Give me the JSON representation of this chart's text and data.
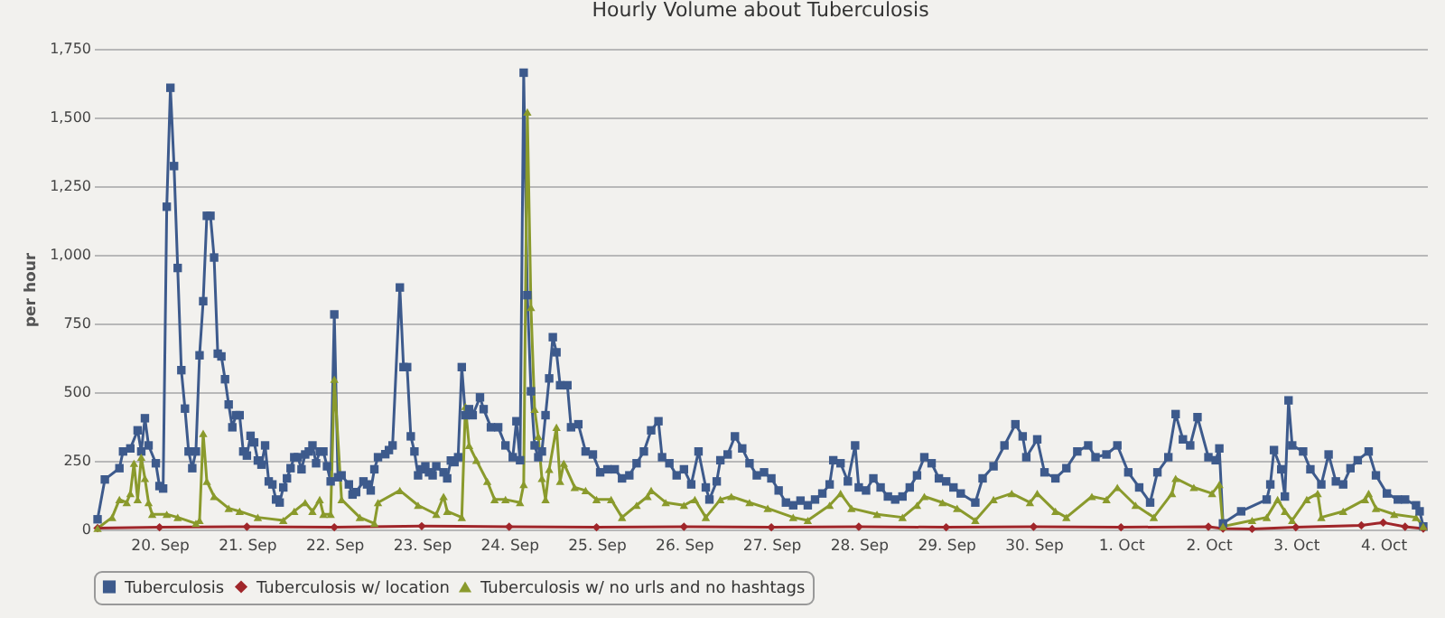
{
  "chart_data": {
    "type": "line",
    "title": "Hourly Volume about Tuberculosis",
    "ylabel": "per hour",
    "xlim": [
      "--09-19T06:00",
      "--10-04T12:00"
    ],
    "ylim": [
      0,
      1750
    ],
    "xticks": [
      {
        "value": "--09-20",
        "label": "20. Sep"
      },
      {
        "value": "--09-21",
        "label": "21. Sep"
      },
      {
        "value": "--09-22",
        "label": "22. Sep"
      },
      {
        "value": "--09-23",
        "label": "23. Sep"
      },
      {
        "value": "--09-24",
        "label": "24. Sep"
      },
      {
        "value": "--09-25",
        "label": "25. Sep"
      },
      {
        "value": "--09-26",
        "label": "26. Sep"
      },
      {
        "value": "--09-27",
        "label": "27. Sep"
      },
      {
        "value": "--09-28",
        "label": "28. Sep"
      },
      {
        "value": "--09-29",
        "label": "29. Sep"
      },
      {
        "value": "--09-30",
        "label": "30. Sep"
      },
      {
        "value": "--10-01",
        "label": "1. Oct"
      },
      {
        "value": "--10-02",
        "label": "2. Oct"
      },
      {
        "value": "--10-03",
        "label": "3. Oct"
      },
      {
        "value": "--10-04",
        "label": "4. Oct"
      }
    ],
    "yticks": [
      0,
      250,
      500,
      750,
      {
        "value": 1000,
        "label": "1,000"
      },
      {
        "value": 1250,
        "label": "1,250"
      },
      {
        "value": 1500,
        "label": "1,500"
      },
      {
        "value": 1750,
        "label": "1,750"
      }
    ],
    "grid": "y",
    "legend": "bottom",
    "series": [
      {
        "name": "Tuberculosis",
        "color": "#3d5a8c",
        "marker": "square",
        "x": [
          "--09-19T07:00",
          "--09-19T09:00",
          "--09-19T13:00",
          "--09-19T14:00",
          "--09-19T16:00",
          "--09-19T18:00",
          "--09-19T19:00",
          "--09-19T20:00",
          "--09-19T21:00",
          "--09-19T23:00",
          "--09-20T00:00",
          "--09-20T01:00",
          "--09-20T02:00",
          "--09-20T03:00",
          "--09-20T04:00",
          "--09-20T05:00",
          "--09-20T06:00",
          "--09-20T07:00",
          "--09-20T08:00",
          "--09-20T09:00",
          "--09-20T10:00",
          "--09-20T11:00",
          "--09-20T12:00",
          "--09-20T13:00",
          "--09-20T14:00",
          "--09-20T15:00",
          "--09-20T16:00",
          "--09-20T17:00",
          "--09-20T18:00",
          "--09-20T19:00",
          "--09-20T20:00",
          "--09-20T21:00",
          "--09-20T22:00",
          "--09-20T23:00",
          "--09-21T00:00",
          "--09-21T01:00",
          "--09-21T02:00",
          "--09-21T03:00",
          "--09-21T04:00",
          "--09-21T05:00",
          "--09-21T06:00",
          "--09-21T07:00",
          "--09-21T08:00",
          "--09-21T09:00",
          "--09-21T10:00",
          "--09-21T11:00",
          "--09-21T12:00",
          "--09-21T13:00",
          "--09-21T14:00",
          "--09-21T15:00",
          "--09-21T16:00",
          "--09-21T17:00",
          "--09-21T18:00",
          "--09-21T19:00",
          "--09-21T20:00",
          "--09-21T21:00",
          "--09-21T22:00",
          "--09-21T23:00",
          "--09-22T00:00",
          "--09-22T01:00",
          "--09-22T02:00",
          "--09-22T04:00",
          "--09-22T05:00",
          "--09-22T06:00",
          "--09-22T08:00",
          "--09-22T09:00",
          "--09-22T10:00",
          "--09-22T11:00",
          "--09-22T12:00",
          "--09-22T14:00",
          "--09-22T15:00",
          "--09-22T16:00",
          "--09-22T18:00",
          "--09-22T19:00",
          "--09-22T20:00",
          "--09-22T21:00",
          "--09-22T22:00",
          "--09-22T23:00",
          "--09-23T00:00",
          "--09-23T01:00",
          "--09-23T02:00",
          "--09-23T03:00",
          "--09-23T04:00",
          "--09-23T06:00",
          "--09-23T07:00",
          "--09-23T08:00",
          "--09-23T09:00",
          "--09-23T10:00",
          "--09-23T11:00",
          "--09-23T12:00",
          "--09-23T13:00",
          "--09-23T14:00",
          "--09-23T16:00",
          "--09-23T17:00",
          "--09-23T19:00",
          "--09-23T21:00",
          "--09-23T23:00",
          "--09-24T01:00",
          "--09-24T02:00",
          "--09-24T03:00",
          "--09-24T04:00",
          "--09-24T05:00",
          "--09-24T06:00",
          "--09-24T07:00",
          "--09-24T08:00",
          "--09-24T09:00",
          "--09-24T10:00",
          "--09-24T11:00",
          "--09-24T12:00",
          "--09-24T13:00",
          "--09-24T14:00",
          "--09-24T16:00",
          "--09-24T17:00",
          "--09-24T19:00",
          "--09-24T21:00",
          "--09-24T23:00",
          "--09-25T01:00",
          "--09-25T03:00",
          "--09-25T05:00",
          "--09-25T07:00",
          "--09-25T09:00",
          "--09-25T11:00",
          "--09-25T13:00",
          "--09-25T15:00",
          "--09-25T17:00",
          "--09-25T18:00",
          "--09-25T20:00",
          "--09-25T22:00",
          "--09-26T00:00",
          "--09-26T02:00",
          "--09-26T04:00",
          "--09-26T06:00",
          "--09-26T07:00",
          "--09-26T09:00",
          "--09-26T10:00",
          "--09-26T12:00",
          "--09-26T14:00",
          "--09-26T16:00",
          "--09-26T18:00",
          "--09-26T20:00",
          "--09-26T22:00",
          "--09-27T00:00",
          "--09-27T02:00",
          "--09-27T04:00",
          "--09-27T06:00",
          "--09-27T08:00",
          "--09-27T10:00",
          "--09-27T12:00",
          "--09-27T14:00",
          "--09-27T16:00",
          "--09-27T17:00",
          "--09-27T19:00",
          "--09-27T21:00",
          "--09-27T23:00",
          "--09-28T00:00",
          "--09-28T02:00",
          "--09-28T04:00",
          "--09-28T06:00",
          "--09-28T08:00",
          "--09-28T10:00",
          "--09-28T12:00",
          "--09-28T14:00",
          "--09-28T16:00",
          "--09-28T18:00",
          "--09-28T20:00",
          "--09-28T22:00",
          "--09-29T00:00",
          "--09-29T02:00",
          "--09-29T04:00",
          "--09-29T08:00",
          "--09-29T10:00",
          "--09-29T13:00",
          "--09-29T16:00",
          "--09-29T19:00",
          "--09-29T21:00",
          "--09-29T22:00",
          "--09-30T01:00",
          "--09-30T03:00",
          "--09-30T06:00",
          "--09-30T09:00",
          "--09-30T12:00",
          "--09-30T15:00",
          "--09-30T17:00",
          "--09-30T20:00",
          "--09-30T23:00",
          "--10-01T02:00",
          "--10-01T05:00",
          "--10-01T08:00",
          "--10-01T10:00",
          "--10-01T13:00",
          "--10-01T15:00",
          "--10-01T17:00",
          "--10-01T19:00",
          "--10-01T21:00",
          "--10-02T00:00",
          "--10-02T02:00",
          "--10-02T03:00",
          "--10-02T04:00",
          "--10-02T09:00",
          "--10-02T16:00",
          "--10-02T17:00",
          "--10-02T18:00",
          "--10-02T20:00",
          "--10-02T21:00",
          "--10-02T22:00",
          "--10-02T23:00",
          "--10-03T02:00",
          "--10-03T04:00",
          "--10-03T07:00",
          "--10-03T09:00",
          "--10-03T11:00",
          "--10-03T13:00",
          "--10-03T15:00",
          "--10-03T17:00",
          "--10-03T20:00",
          "--10-03T22:00",
          "--10-04T01:00",
          "--10-04T04:00",
          "--10-04T06:00",
          "--10-04T09:00",
          "--10-04T10:00",
          "--10-04T11:00"
        ],
        "values": [
          37,
          182,
          223,
          284,
          295,
          361,
          284,
          405,
          306,
          241,
          158,
          149,
          1175,
          1608,
          1323,
          952,
          580,
          440,
          284,
          223,
          284,
          634,
          831,
          1142,
          1142,
          990,
          640,
          630,
          547,
          455,
          372,
          416,
          416,
          284,
          269,
          341,
          317,
          251,
          236,
          306,
          175,
          164,
          109,
          98,
          153,
          186,
          223,
          263,
          263,
          219,
          273,
          284,
          306,
          241,
          284,
          284,
          230,
          175,
          783,
          190,
          197,
          164,
          127,
          136,
          175,
          164,
          142,
          219,
          263,
          274,
          289,
          306,
          881,
          591,
          591,
          339,
          284,
          197,
          219,
          230,
          208,
          197,
          230,
          208,
          186,
          251,
          245,
          263,
          591,
          416,
          438,
          416,
          481,
          438,
          372,
          372,
          306,
          263,
          394,
          252,
          1663,
          853,
          503,
          306,
          263,
          284,
          416,
          550,
          700,
          645,
          525,
          525,
          372,
          383,
          284,
          273,
          208,
          219,
          219,
          186,
          197,
          241,
          284,
          361,
          394,
          263,
          241,
          197,
          219,
          164,
          284,
          153,
          109,
          175,
          252,
          273,
          339,
          295,
          241,
          197,
          208,
          186,
          142,
          98,
          88,
          105,
          88,
          109,
          131,
          164,
          252,
          241,
          175,
          306,
          153,
          142,
          186,
          153,
          120,
          109,
          120,
          153,
          197,
          263,
          241,
          186,
          175,
          153,
          131,
          98,
          186,
          230,
          306,
          383,
          339,
          263,
          328,
          208,
          186,
          223,
          284,
          306,
          263,
          273,
          306,
          208,
          153,
          98,
          208,
          263,
          420,
          328,
          306,
          409,
          263,
          252,
          295,
          22,
          66,
          109,
          164,
          289,
          219,
          120,
          470,
          306,
          284,
          219,
          164,
          273,
          175,
          164,
          223,
          252,
          284,
          197,
          131,
          109,
          109,
          88,
          66,
          11
        ]
      },
      {
        "name": "Tuberculosis w/ location",
        "color": "#a0262a",
        "marker": "diamond",
        "x": [
          "--09-19T07:00",
          "--09-20T00:00",
          "--09-21T00:00",
          "--09-22T00:00",
          "--09-23T00:00",
          "--09-24T00:00",
          "--09-25T00:00",
          "--09-26T00:00",
          "--09-27T00:00",
          "--09-28T00:00",
          "--09-29T00:00",
          "--09-30T00:00",
          "--10-01T00:00",
          "--10-02T00:00",
          "--10-02T04:00",
          "--10-02T12:00",
          "--10-03T00:00",
          "--10-03T18:00",
          "--10-04T00:00",
          "--10-04T06:00",
          "--10-04T11:00"
        ],
        "values": [
          5,
          8,
          10,
          8,
          12,
          10,
          8,
          10,
          8,
          10,
          8,
          10,
          8,
          10,
          3,
          2,
          8,
          15,
          25,
          10,
          3
        ]
      },
      {
        "name": "Tuberculosis w/ no urls and no hashtags",
        "color": "#8a9a2c",
        "marker": "triangle",
        "x": [
          "--09-19T07:00",
          "--09-19T11:00",
          "--09-19T13:00",
          "--09-19T15:00",
          "--09-19T16:00",
          "--09-19T17:00",
          "--09-19T18:00",
          "--09-19T19:00",
          "--09-19T20:00",
          "--09-19T21:00",
          "--09-19T22:00",
          "--09-20T02:00",
          "--09-20T05:00",
          "--09-20T10:00",
          "--09-20T11:00",
          "--09-20T12:00",
          "--09-20T13:00",
          "--09-20T15:00",
          "--09-20T19:00",
          "--09-20T22:00",
          "--09-21T03:00",
          "--09-21T10:00",
          "--09-21T13:00",
          "--09-21T16:00",
          "--09-21T18:00",
          "--09-21T20:00",
          "--09-21T21:00",
          "--09-21T23:00",
          "--09-22T00:00",
          "--09-22T02:00",
          "--09-22T07:00",
          "--09-22T11:00",
          "--09-22T12:00",
          "--09-22T18:00",
          "--09-22T23:00",
          "--09-23T04:00",
          "--09-23T06:00",
          "--09-23T07:00",
          "--09-23T11:00",
          "--09-23T12:00",
          "--09-23T13:00",
          "--09-23T15:00",
          "--09-23T18:00",
          "--09-23T20:00",
          "--09-23T23:00",
          "--09-24T03:00",
          "--09-24T04:00",
          "--09-24T05:00",
          "--09-24T06:00",
          "--09-24T07:00",
          "--09-24T08:00",
          "--09-24T09:00",
          "--09-24T10:00",
          "--09-24T11:00",
          "--09-24T13:00",
          "--09-24T14:00",
          "--09-24T15:00",
          "--09-24T18:00",
          "--09-24T21:00",
          "--09-25T00:00",
          "--09-25T04:00",
          "--09-25T07:00",
          "--09-25T11:00",
          "--09-25T14:00",
          "--09-25T15:00",
          "--09-25T19:00",
          "--09-26T00:00",
          "--09-26T03:00",
          "--09-26T06:00",
          "--09-26T10:00",
          "--09-26T13:00",
          "--09-26T18:00",
          "--09-26T23:00",
          "--09-27T06:00",
          "--09-27T10:00",
          "--09-27T16:00",
          "--09-27T19:00",
          "--09-27T22:00",
          "--09-28T05:00",
          "--09-28T12:00",
          "--09-28T16:00",
          "--09-28T18:00",
          "--09-28T23:00",
          "--09-29T03:00",
          "--09-29T08:00",
          "--09-29T13:00",
          "--09-29T18:00",
          "--09-29T23:00",
          "--09-30T01:00",
          "--09-30T06:00",
          "--09-30T09:00",
          "--09-30T16:00",
          "--09-30T20:00",
          "--09-30T23:00",
          "--10-01T04:00",
          "--10-01T09:00",
          "--10-01T14:00",
          "--10-01T15:00",
          "--10-01T20:00",
          "--10-02T01:00",
          "--10-02T03:00",
          "--10-02T04:00",
          "--10-02T12:00",
          "--10-02T16:00",
          "--10-02T19:00",
          "--10-02T21:00",
          "--10-02T23:00",
          "--10-03T03:00",
          "--10-03T06:00",
          "--10-03T07:00",
          "--10-03T13:00",
          "--10-03T19:00",
          "--10-03T20:00",
          "--10-03T22:00",
          "--10-04T03:00",
          "--10-04T09:00",
          "--10-04T11:00"
        ],
        "values": [
          4,
          44,
          109,
          98,
          131,
          241,
          109,
          263,
          186,
          98,
          55,
          55,
          44,
          22,
          33,
          350,
          175,
          120,
          77,
          66,
          44,
          33,
          66,
          98,
          66,
          109,
          55,
          55,
          547,
          109,
          44,
          22,
          98,
          142,
          88,
          55,
          120,
          66,
          44,
          448,
          306,
          252,
          175,
          109,
          109,
          98,
          164,
          1520,
          809,
          438,
          339,
          186,
          109,
          219,
          372,
          175,
          241,
          153,
          142,
          109,
          109,
          44,
          88,
          120,
          142,
          98,
          88,
          109,
          44,
          109,
          120,
          98,
          77,
          44,
          33,
          88,
          131,
          77,
          55,
          44,
          88,
          120,
          98,
          77,
          33,
          109,
          131,
          98,
          131,
          66,
          44,
          120,
          109,
          153,
          88,
          44,
          131,
          186,
          153,
          131,
          164,
          11,
          33,
          44,
          109,
          66,
          33,
          109,
          131,
          44,
          66,
          109,
          131,
          77,
          55,
          44,
          11
        ]
      }
    ]
  }
}
